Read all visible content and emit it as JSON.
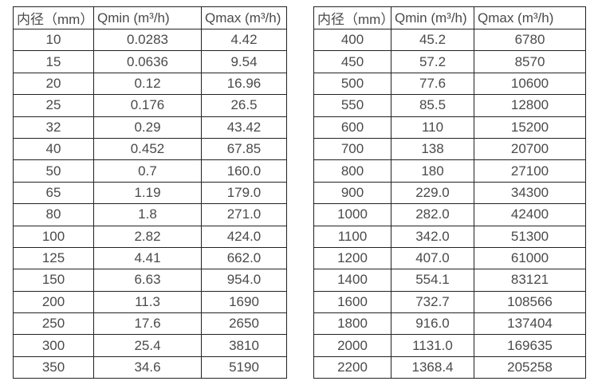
{
  "colors": {
    "border": "#222222",
    "text": "#4a4a4a"
  },
  "tables": [
    {
      "name": "flow-table-small-diameters",
      "headers": [
        "内径（mm）",
        "Qmin (m³/h)",
        "Qmax (m³/h)"
      ],
      "rows": [
        [
          "10",
          "0.0283",
          "4.42"
        ],
        [
          "15",
          "0.0636",
          "9.54"
        ],
        [
          "20",
          "0.12",
          "16.96"
        ],
        [
          "25",
          "0.176",
          "26.5"
        ],
        [
          "32",
          "0.29",
          "43.42"
        ],
        [
          "40",
          "0.452",
          "67.85"
        ],
        [
          "50",
          "0.7",
          "160.0"
        ],
        [
          "65",
          "1.19",
          "179.0"
        ],
        [
          "80",
          "1.8",
          "271.0"
        ],
        [
          "100",
          "2.82",
          "424.0"
        ],
        [
          "125",
          "4.41",
          "662.0"
        ],
        [
          "150",
          "6.63",
          "954.0"
        ],
        [
          "200",
          "11.3",
          "1690"
        ],
        [
          "250",
          "17.6",
          "2650"
        ],
        [
          "300",
          "25.4",
          "3810"
        ],
        [
          "350",
          "34.6",
          "5190"
        ]
      ]
    },
    {
      "name": "flow-table-large-diameters",
      "headers": [
        "内径（mm）",
        "Qmin (m³/h)",
        "Qmax (m³/h)"
      ],
      "rows": [
        [
          "400",
          "45.2",
          "6780"
        ],
        [
          "450",
          "57.2",
          "8570"
        ],
        [
          "500",
          "77.6",
          "10600"
        ],
        [
          "550",
          "85.5",
          "12800"
        ],
        [
          "600",
          "110",
          "15200"
        ],
        [
          "700",
          "138",
          "20700"
        ],
        [
          "800",
          "180",
          "27100"
        ],
        [
          "900",
          "229.0",
          "34300"
        ],
        [
          "1000",
          "282.0",
          "42400"
        ],
        [
          "1100",
          "342.0",
          "51300"
        ],
        [
          "1200",
          "407.0",
          "61000"
        ],
        [
          "1400",
          "554.1",
          "83121"
        ],
        [
          "1600",
          "732.7",
          "108566"
        ],
        [
          "1800",
          "916.0",
          "137404"
        ],
        [
          "2000",
          "1131.0",
          "169635"
        ],
        [
          "2200",
          "1368.4",
          "205258"
        ]
      ]
    }
  ]
}
